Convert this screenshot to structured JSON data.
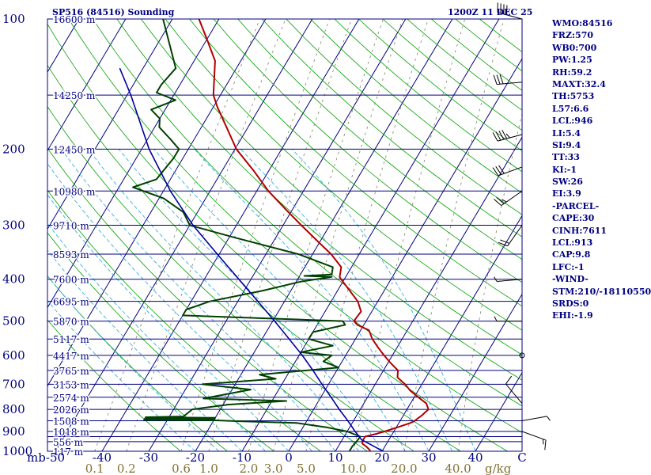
{
  "chart_data": {
    "type": "skew-t",
    "title_left": "SP516 (84516) Sounding",
    "title_right": "1200Z 11 DEC 25",
    "pressure_labels": [
      100,
      200,
      300,
      400,
      500,
      600,
      700,
      800,
      900,
      1000
    ],
    "pressure_tick_mb": [
      100,
      150,
      200,
      250,
      300,
      350,
      400,
      450,
      500,
      550,
      600,
      650,
      700,
      750,
      800,
      850,
      900,
      925,
      950,
      1000
    ],
    "pressure_unit": "mb",
    "temp_ticks": [
      -50,
      -40,
      -30,
      -20,
      -10,
      0,
      10,
      20,
      30,
      40,
      50
    ],
    "temp_tick_labels": [
      "-50",
      "-40",
      "-30",
      "-20",
      "-10",
      "0",
      "10",
      "20",
      "30",
      "40",
      "C"
    ],
    "mixing_ratio_labels": [
      "0.1",
      "0.2",
      "0.6",
      "1.0",
      "2.0",
      "3.0",
      "5.0",
      "10.0",
      "20.0",
      "40.0"
    ],
    "mixing_ratio_values": [
      0.1,
      0.2,
      0.6,
      1.0,
      2.0,
      3.0,
      5.0,
      10.0,
      20.0,
      40.0
    ],
    "mixing_ratio_unit": "g/kg",
    "heights": [
      {
        "p": 100,
        "label": "16600 m"
      },
      {
        "p": 150,
        "label": "14250 m"
      },
      {
        "p": 200,
        "label": "12450 m"
      },
      {
        "p": 250,
        "label": "10980 m"
      },
      {
        "p": 300,
        "label": "9710 m"
      },
      {
        "p": 350,
        "label": "8593 m"
      },
      {
        "p": 400,
        "label": "7600 m"
      },
      {
        "p": 450,
        "label": "6695 m"
      },
      {
        "p": 500,
        "label": "5870 m"
      },
      {
        "p": 550,
        "label": "5117 m"
      },
      {
        "p": 600,
        "label": "4417 m"
      },
      {
        "p": 650,
        "label": "3765 m"
      },
      {
        "p": 700,
        "label": "3153 m"
      },
      {
        "p": 750,
        "label": "2574 m"
      },
      {
        "p": 800,
        "label": "2026 m"
      },
      {
        "p": 850,
        "label": "1508 m"
      },
      {
        "p": 900,
        "label": "1018 m"
      },
      {
        "p": 950,
        "label": "556 m"
      },
      {
        "p": 1000,
        "label": "117 m"
      }
    ],
    "temperature": [
      {
        "p": 1000,
        "t": 17.5
      },
      {
        "p": 990,
        "t": 17.0
      },
      {
        "p": 975,
        "t": 16.0
      },
      {
        "p": 960,
        "t": 14.8
      },
      {
        "p": 950,
        "t": 14.5
      },
      {
        "p": 925,
        "t": 14.5
      },
      {
        "p": 910,
        "t": 16.8
      },
      {
        "p": 900,
        "t": 18.0
      },
      {
        "p": 880,
        "t": 20.3
      },
      {
        "p": 860,
        "t": 22.5
      },
      {
        "p": 850,
        "t": 23.1
      },
      {
        "p": 825,
        "t": 24.0
      },
      {
        "p": 800,
        "t": 24.6
      },
      {
        "p": 775,
        "t": 23.4
      },
      {
        "p": 750,
        "t": 20.9
      },
      {
        "p": 725,
        "t": 18.4
      },
      {
        "p": 700,
        "t": 16.4
      },
      {
        "p": 675,
        "t": 13.9
      },
      {
        "p": 650,
        "t": 13.1
      },
      {
        "p": 625,
        "t": 10.6
      },
      {
        "p": 600,
        "t": 8.2
      },
      {
        "p": 575,
        "t": 5.9
      },
      {
        "p": 550,
        "t": 3.6
      },
      {
        "p": 525,
        "t": 1.8
      },
      {
        "p": 510,
        "t": -1.4
      },
      {
        "p": 500,
        "t": -2.6
      },
      {
        "p": 490,
        "t": -2.5
      },
      {
        "p": 475,
        "t": -2.3
      },
      {
        "p": 450,
        "t": -4.3
      },
      {
        "p": 425,
        "t": -7.4
      },
      {
        "p": 400,
        "t": -10.7
      },
      {
        "p": 395,
        "t": -11.3
      },
      {
        "p": 375,
        "t": -12.2
      },
      {
        "p": 350,
        "t": -16.0
      },
      {
        "p": 325,
        "t": -20.9
      },
      {
        "p": 300,
        "t": -26.1
      },
      {
        "p": 275,
        "t": -31.6
      },
      {
        "p": 250,
        "t": -37.5
      },
      {
        "p": 225,
        "t": -43.1
      },
      {
        "p": 200,
        "t": -49.7
      },
      {
        "p": 175,
        "t": -55.3
      },
      {
        "p": 160,
        "t": -59.1
      },
      {
        "p": 150,
        "t": -61.5
      },
      {
        "p": 125,
        "t": -65.5
      },
      {
        "p": 110,
        "t": -70.5
      },
      {
        "p": 100,
        "t": -74.3
      }
    ],
    "dewpoint": [
      {
        "p": 1000,
        "t": 13.0
      },
      {
        "p": 975,
        "t": 13.0
      },
      {
        "p": 950,
        "t": 13.3
      },
      {
        "p": 925,
        "t": 13.5
      },
      {
        "p": 900,
        "t": 10.0
      },
      {
        "p": 880,
        "t": 5.0
      },
      {
        "p": 860,
        "t": -2.0
      },
      {
        "p": 852,
        "t": -15.0
      },
      {
        "p": 848,
        "t": -20.0
      },
      {
        "p": 846,
        "t": -35.0
      },
      {
        "p": 842,
        "t": -20.0
      },
      {
        "p": 840,
        "t": -35.0
      },
      {
        "p": 837,
        "t": -20.0
      },
      {
        "p": 834,
        "t": -35.0
      },
      {
        "p": 831,
        "t": -27.0
      },
      {
        "p": 800,
        "t": -26.0
      },
      {
        "p": 780,
        "t": -19.0
      },
      {
        "p": 765,
        "t": -7.0
      },
      {
        "p": 755,
        "t": -25.0
      },
      {
        "p": 720,
        "t": -16.0
      },
      {
        "p": 700,
        "t": -27.0
      },
      {
        "p": 680,
        "t": -12.0
      },
      {
        "p": 665,
        "t": -16.0
      },
      {
        "p": 640,
        "t": 0.0
      },
      {
        "p": 620,
        "t": -4.0
      },
      {
        "p": 600,
        "t": -3.0
      },
      {
        "p": 590,
        "t": -10.0
      },
      {
        "p": 570,
        "t": -4.0
      },
      {
        "p": 550,
        "t": -10.0
      },
      {
        "p": 530,
        "t": -10.0
      },
      {
        "p": 510,
        "t": -4.0
      },
      {
        "p": 500,
        "t": -5.0
      },
      {
        "p": 485,
        "t": -40.0
      },
      {
        "p": 470,
        "t": -40.0
      },
      {
        "p": 450,
        "t": -36.0
      },
      {
        "p": 425,
        "t": -26.0
      },
      {
        "p": 405,
        "t": -19.0
      },
      {
        "p": 395,
        "t": -13.0
      },
      {
        "p": 393,
        "t": -19.0
      },
      {
        "p": 390,
        "t": -13.3
      },
      {
        "p": 375,
        "t": -14.0
      },
      {
        "p": 350,
        "t": -23.0
      },
      {
        "p": 320,
        "t": -39.0
      },
      {
        "p": 300,
        "t": -50.0
      },
      {
        "p": 280,
        "t": -53.0
      },
      {
        "p": 260,
        "t": -59.0
      },
      {
        "p": 245,
        "t": -67.0
      },
      {
        "p": 235,
        "t": -63.0
      },
      {
        "p": 210,
        "t": -62.0
      },
      {
        "p": 200,
        "t": -62.0
      },
      {
        "p": 190,
        "t": -65.0
      },
      {
        "p": 178,
        "t": -69.0
      },
      {
        "p": 170,
        "t": -70.0
      },
      {
        "p": 162,
        "t": -73.0
      },
      {
        "p": 154,
        "t": -69.0
      },
      {
        "p": 148,
        "t": -74.0
      },
      {
        "p": 142,
        "t": -74.0
      },
      {
        "p": 130,
        "t": -73.0
      },
      {
        "p": 100,
        "t": -82.0
      }
    ],
    "parcel": [
      {
        "p": 1000,
        "t": 20.3
      },
      {
        "p": 990,
        "t": 19.2
      },
      {
        "p": 965,
        "t": 16.7
      },
      {
        "p": 940,
        "t": 14.1
      },
      {
        "p": 913,
        "t": 12.5
      },
      {
        "p": 900,
        "t": 11.7
      },
      {
        "p": 850,
        "t": 8.8
      },
      {
        "p": 800,
        "t": 5.5
      },
      {
        "p": 750,
        "t": 2.2
      },
      {
        "p": 700,
        "t": -1.4
      },
      {
        "p": 650,
        "t": -5.1
      },
      {
        "p": 600,
        "t": -9.3
      },
      {
        "p": 550,
        "t": -14.2
      },
      {
        "p": 500,
        "t": -19.6
      },
      {
        "p": 450,
        "t": -25.7
      },
      {
        "p": 400,
        "t": -32.6
      },
      {
        "p": 350,
        "t": -40.4
      },
      {
        "p": 300,
        "t": -49.3
      },
      {
        "p": 250,
        "t": -58.5
      },
      {
        "p": 200,
        "t": -68.4
      },
      {
        "p": 150,
        "t": -79.2
      },
      {
        "p": 130,
        "t": -85.0
      }
    ],
    "wind_barbs": [
      {
        "p": 100,
        "dir": 285,
        "spd": 40
      },
      {
        "p": 140,
        "dir": 265,
        "spd": 30
      },
      {
        "p": 185,
        "dir": 255,
        "spd": 45
      },
      {
        "p": 220,
        "dir": 250,
        "spd": 30
      },
      {
        "p": 250,
        "dir": 235,
        "spd": 25
      },
      {
        "p": 300,
        "dir": 215,
        "spd": 20
      },
      {
        "p": 400,
        "dir": 265,
        "spd": 5
      },
      {
        "p": 500,
        "dir": 270,
        "spd": 5
      },
      {
        "p": 600,
        "dir": 0,
        "spd": 0
      },
      {
        "p": 775,
        "dir": 320,
        "spd": 10
      },
      {
        "p": 850,
        "dir": 80,
        "spd": 5
      },
      {
        "p": 900,
        "dir": 110,
        "spd": 15
      }
    ]
  },
  "stats": [
    "WMO:84516",
    "FRZ:570",
    "WB0:700",
    "PW:1.25",
    "RH:59.2",
    "MAXT:32.4",
    "TH:5753",
    "L57:6.6",
    "LCL:946",
    "LI:5.4",
    "SI:9.4",
    "TT:33",
    "KI:-1",
    "SW:26",
    "EI:3.9",
    "-PARCEL-",
    "CAPE:30",
    "CINH:7611",
    "LCL:913",
    "CAP:9.8",
    "LFC:-1",
    "-WIND-",
    "STM:210/-18110550",
    "SRDS:0",
    "EHI:-1.9"
  ],
  "colors": {
    "isobar": "#000080",
    "isotherm": "#000080",
    "dry_adiabat": "#00a000",
    "moist_adiabat": "#3ab0e0",
    "mixing_ratio": "#808060",
    "temperature": "#b00000",
    "dewpoint": "#004000",
    "parcel": "#0000a0",
    "text": "#000080",
    "mixing_label": "#807030"
  }
}
